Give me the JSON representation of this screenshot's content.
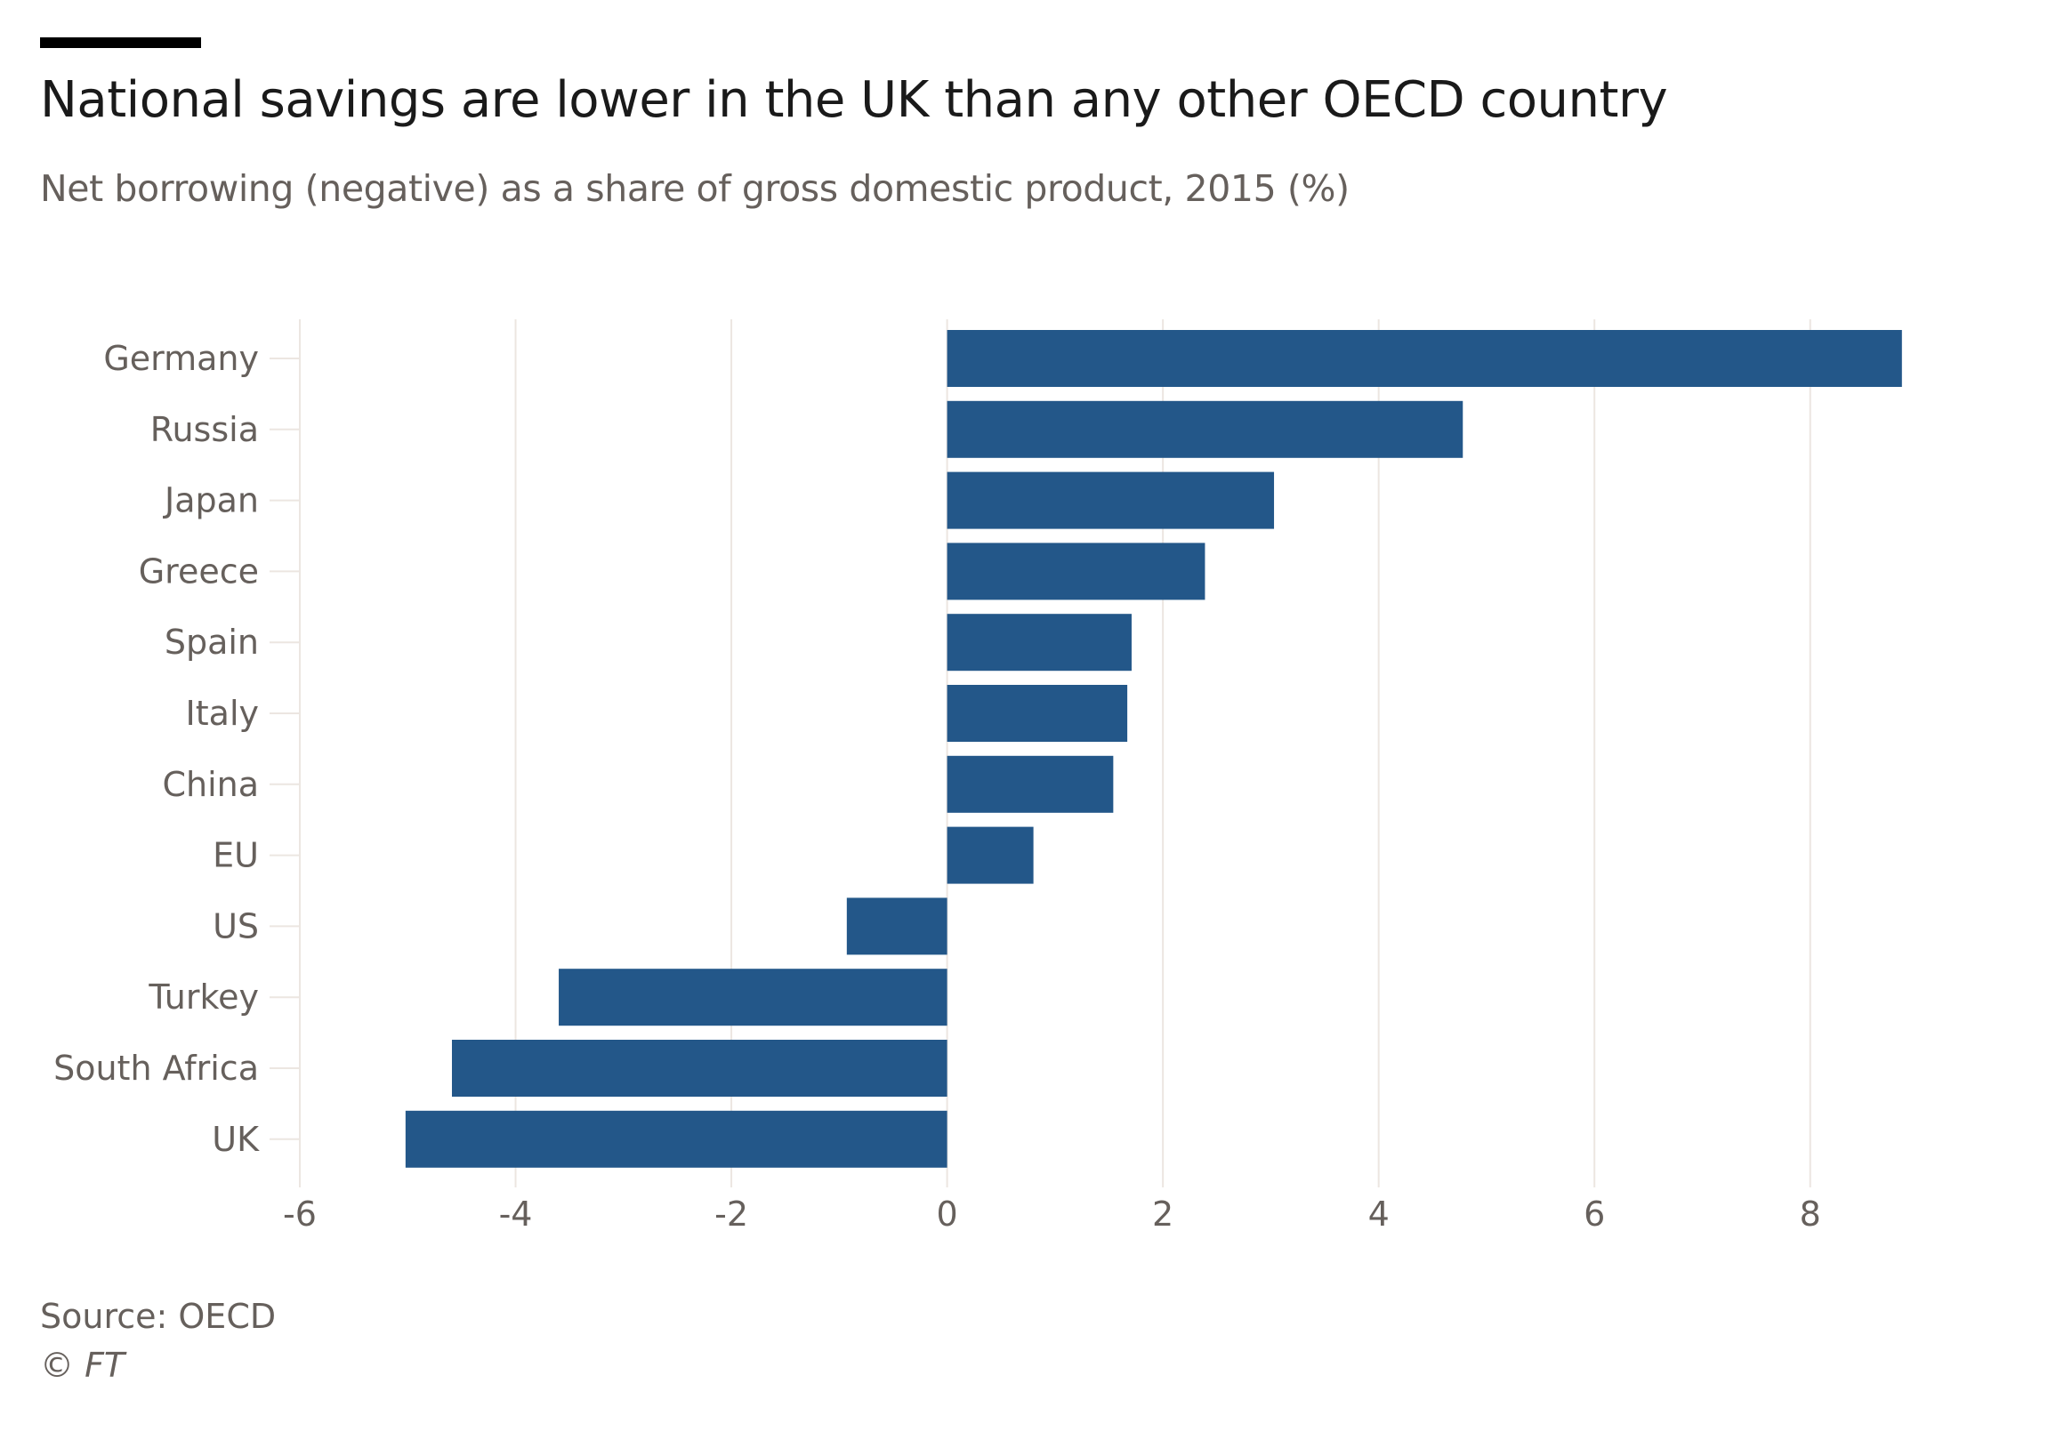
{
  "header": {
    "title": "National savings are lower in the UK than any other OECD country",
    "subtitle": "Net borrowing (negative) as a share of gross domestic product, 2015 (%)"
  },
  "footer": {
    "source": "Source: OECD",
    "copyright": "© FT"
  },
  "colors": {
    "bar": "#235789",
    "gridline": "#ece6e1",
    "axis_text": "#66605c"
  },
  "chart_data": {
    "type": "bar",
    "orientation": "horizontal",
    "title": "National savings are lower in the UK than any other OECD country",
    "subtitle": "Net borrowing (negative) as a share of gross domestic product, 2015 (%)",
    "xlabel": "",
    "ylabel": "",
    "categories": [
      "Germany",
      "Russia",
      "Japan",
      "Greece",
      "Spain",
      "Italy",
      "China",
      "EU",
      "US",
      "Turkey",
      "South Africa",
      "UK"
    ],
    "values": [
      8.85,
      4.78,
      3.03,
      2.39,
      1.71,
      1.67,
      1.54,
      0.8,
      -0.93,
      -3.6,
      -4.59,
      -5.02
    ],
    "xlim": [
      -6,
      9
    ],
    "xticks": [
      -6,
      -4,
      -2,
      0,
      2,
      4,
      6,
      8
    ],
    "xtick_labels": [
      "-6",
      "-4",
      "-2",
      "0",
      "2",
      "4",
      "6",
      "8"
    ],
    "grid": true,
    "legend": "none",
    "source": "Source: OECD"
  }
}
